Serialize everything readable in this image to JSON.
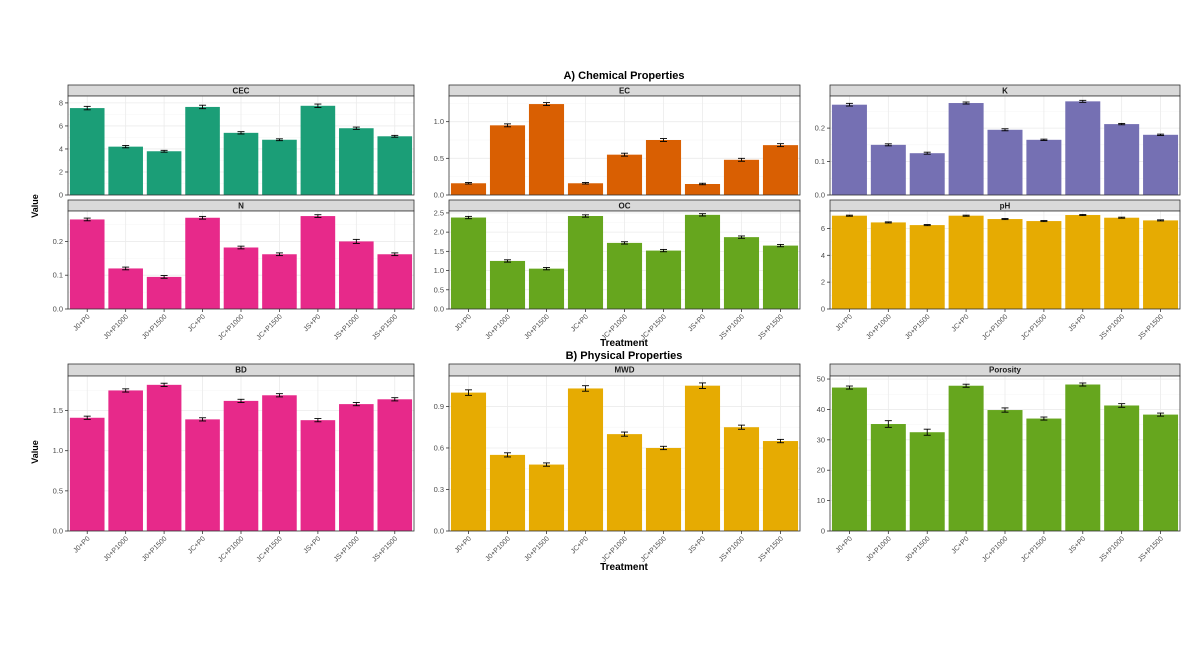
{
  "figure": {
    "section_a_title": "A) Chemical Properties",
    "section_b_title": "B) Physical Properties",
    "ylabel": "Value",
    "xlabel": "Treatment"
  },
  "chart_data": [
    {
      "type": "bar",
      "title": "CEC",
      "color": "#1b9e77",
      "categories": [
        "J0+P0",
        "J0+P1000",
        "J0+P1500",
        "JC+P0",
        "JC+P1000",
        "JC+P1500",
        "JS+P0",
        "JS+P1000",
        "JS+P1500"
      ],
      "values": [
        7.55,
        4.2,
        3.8,
        7.65,
        5.4,
        4.8,
        7.75,
        5.8,
        5.1
      ],
      "errors": [
        0.15,
        0.1,
        0.08,
        0.15,
        0.1,
        0.08,
        0.15,
        0.1,
        0.08
      ],
      "ylim": [
        0,
        8.6
      ],
      "yticks": [
        0,
        2,
        4,
        6,
        8
      ],
      "ytick_labels": [
        "0",
        "2",
        "4",
        "6",
        "8"
      ],
      "show_xticks": false
    },
    {
      "type": "bar",
      "title": "EC",
      "color": "#d95f02",
      "categories": [
        "J0+P0",
        "J0+P1000",
        "J0+P1500",
        "JC+P0",
        "JC+P1000",
        "JC+P1500",
        "JS+P0",
        "JS+P1000",
        "JS+P1500"
      ],
      "values": [
        0.16,
        0.95,
        1.24,
        0.16,
        0.55,
        0.75,
        0.15,
        0.48,
        0.68
      ],
      "errors": [
        0.01,
        0.02,
        0.02,
        0.01,
        0.02,
        0.02,
        0.01,
        0.02,
        0.02
      ],
      "ylim": [
        0,
        1.35
      ],
      "yticks": [
        0,
        0.5,
        1.0
      ],
      "ytick_labels": [
        "0.0",
        "0.5",
        "1.0"
      ],
      "show_xticks": false
    },
    {
      "type": "bar",
      "title": "K",
      "color": "#7570b3",
      "categories": [
        "J0+P0",
        "J0+P1000",
        "J0+P1500",
        "JC+P0",
        "JC+P1000",
        "JC+P1500",
        "JS+P0",
        "JS+P1000",
        "JS+P1500"
      ],
      "values": [
        0.27,
        0.15,
        0.125,
        0.275,
        0.195,
        0.165,
        0.28,
        0.212,
        0.18
      ],
      "errors": [
        0.004,
        0.003,
        0.003,
        0.003,
        0.003,
        0.002,
        0.003,
        0.002,
        0.002
      ],
      "ylim": [
        0,
        0.296
      ],
      "yticks": [
        0,
        0.1,
        0.2
      ],
      "ytick_labels": [
        "0.0",
        "0.1",
        "0.2"
      ],
      "show_xticks": false
    },
    {
      "type": "bar",
      "title": "N",
      "color": "#e7298a",
      "categories": [
        "J0+P0",
        "J0+P1000",
        "J0+P1500",
        "JC+P0",
        "JC+P1000",
        "JC+P1500",
        "JS+P0",
        "JS+P1000",
        "JS+P1500"
      ],
      "values": [
        0.265,
        0.12,
        0.095,
        0.27,
        0.182,
        0.162,
        0.275,
        0.2,
        0.162
      ],
      "errors": [
        0.004,
        0.004,
        0.004,
        0.004,
        0.004,
        0.004,
        0.004,
        0.006,
        0.004
      ],
      "ylim": [
        0,
        0.29
      ],
      "yticks": [
        0,
        0.1,
        0.2
      ],
      "ytick_labels": [
        "0.0",
        "0.1",
        "0.2"
      ],
      "show_xticks": true
    },
    {
      "type": "bar",
      "title": "OC",
      "color": "#66a61e",
      "categories": [
        "J0+P0",
        "J0+P1000",
        "J0+P1500",
        "JC+P0",
        "JC+P1000",
        "JC+P1500",
        "JS+P0",
        "JS+P1000",
        "JS+P1500"
      ],
      "values": [
        2.38,
        1.25,
        1.05,
        2.42,
        1.72,
        1.52,
        2.45,
        1.87,
        1.65
      ],
      "errors": [
        0.03,
        0.03,
        0.03,
        0.03,
        0.03,
        0.03,
        0.03,
        0.03,
        0.03
      ],
      "ylim": [
        0,
        2.55
      ],
      "yticks": [
        0,
        0.5,
        1.0,
        1.5,
        2.0,
        2.5
      ],
      "ytick_labels": [
        "0.0",
        "0.5",
        "1.0",
        "1.5",
        "2.0",
        "2.5"
      ],
      "show_xticks": true
    },
    {
      "type": "bar",
      "title": "pH",
      "color": "#e6ab02",
      "categories": [
        "J0+P0",
        "J0+P1000",
        "J0+P1500",
        "JC+P0",
        "JC+P1000",
        "JC+P1500",
        "JS+P0",
        "JS+P1000",
        "JS+P1500"
      ],
      "values": [
        6.95,
        6.45,
        6.25,
        6.95,
        6.7,
        6.55,
        7.0,
        6.8,
        6.6
      ],
      "errors": [
        0.04,
        0.04,
        0.04,
        0.04,
        0.04,
        0.04,
        0.04,
        0.04,
        0.04
      ],
      "ylim": [
        0,
        7.3
      ],
      "yticks": [
        0,
        2,
        4,
        6
      ],
      "ytick_labels": [
        "0",
        "2",
        "4",
        "6"
      ],
      "show_xticks": true
    },
    {
      "type": "bar",
      "title": "BD",
      "color": "#e7298a",
      "categories": [
        "J0+P0",
        "J0+P1000",
        "J0+P1500",
        "JC+P0",
        "JC+P1000",
        "JC+P1500",
        "JS+P0",
        "JS+P1000",
        "JS+P1500"
      ],
      "values": [
        1.41,
        1.75,
        1.82,
        1.39,
        1.62,
        1.69,
        1.38,
        1.58,
        1.64
      ],
      "errors": [
        0.02,
        0.02,
        0.02,
        0.02,
        0.02,
        0.02,
        0.02,
        0.02,
        0.02
      ],
      "ylim": [
        0,
        1.93
      ],
      "yticks": [
        0,
        0.5,
        1.0,
        1.5
      ],
      "ytick_labels": [
        "0.0",
        "0.5",
        "1.0",
        "1.5"
      ],
      "show_xticks": true
    },
    {
      "type": "bar",
      "title": "MWD",
      "color": "#e6ab02",
      "categories": [
        "J0+P0",
        "J0+P1000",
        "J0+P1500",
        "JC+P0",
        "JC+P1000",
        "JC+P1500",
        "JS+P0",
        "JS+P1000",
        "JS+P1500"
      ],
      "values": [
        1.0,
        0.55,
        0.48,
        1.03,
        0.7,
        0.6,
        1.05,
        0.75,
        0.65
      ],
      "errors": [
        0.02,
        0.015,
        0.012,
        0.02,
        0.015,
        0.012,
        0.02,
        0.015,
        0.012
      ],
      "ylim": [
        0,
        1.12
      ],
      "yticks": [
        0,
        0.3,
        0.6,
        0.9
      ],
      "ytick_labels": [
        "0.0",
        "0.3",
        "0.6",
        "0.9"
      ],
      "show_xticks": true
    },
    {
      "type": "bar",
      "title": "Porosity",
      "color": "#66a61e",
      "categories": [
        "J0+P0",
        "J0+P1000",
        "J0+P1500",
        "JC+P0",
        "JC+P1000",
        "JC+P1500",
        "JS+P0",
        "JS+P1000",
        "JS+P1500"
      ],
      "values": [
        47.2,
        35.2,
        32.5,
        47.8,
        39.8,
        37.0,
        48.2,
        41.3,
        38.3
      ],
      "errors": [
        0.5,
        1.1,
        1.0,
        0.5,
        0.7,
        0.5,
        0.5,
        0.6,
        0.5
      ],
      "ylim": [
        0,
        51
      ],
      "yticks": [
        0,
        10,
        20,
        30,
        40,
        50
      ],
      "ytick_labels": [
        "0",
        "10",
        "20",
        "30",
        "40",
        "50"
      ],
      "show_xticks": true
    }
  ]
}
